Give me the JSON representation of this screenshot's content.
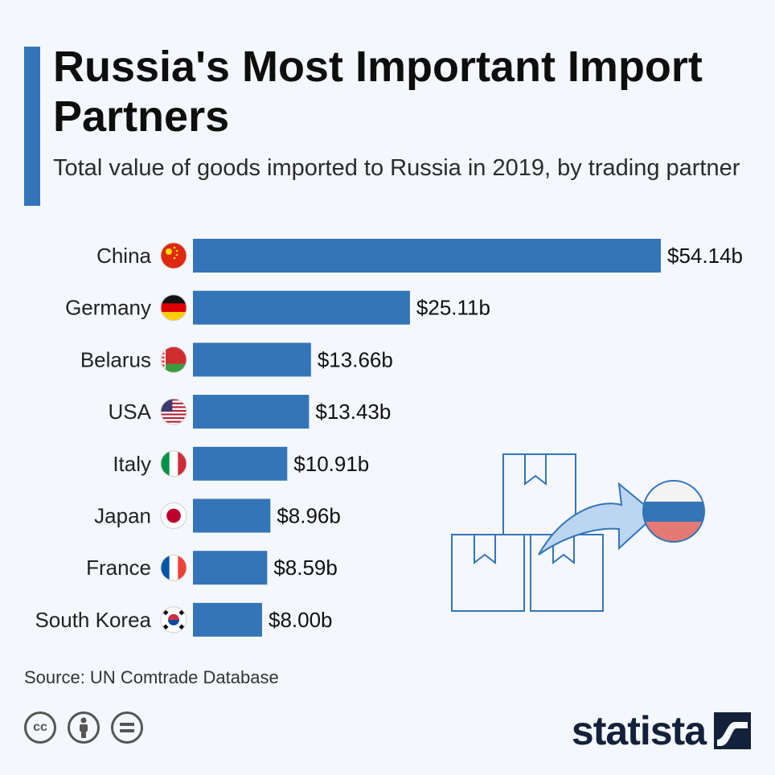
{
  "header": {
    "title": "Russia's Most Important Import Partners",
    "subtitle": "Total value of goods imported to Russia in 2019, by trading partner"
  },
  "footer": {
    "source": "Source: UN Comtrade Database",
    "logo": "statista"
  },
  "colors": {
    "accent": "#3475b8",
    "bar": "#3475b8"
  },
  "icons": [
    "cc-icon",
    "attribution-icon",
    "no-derivatives-icon",
    "statista-logo-icon",
    "russia-flag-icon"
  ],
  "chart_data": {
    "type": "bar",
    "orientation": "horizontal",
    "title": "Russia's Most Important Import Partners",
    "subtitle": "Total value of goods imported to Russia in 2019, by trading partner",
    "categories": [
      "China",
      "Germany",
      "Belarus",
      "USA",
      "Italy",
      "Japan",
      "France",
      "South Korea"
    ],
    "values": [
      54.14,
      25.11,
      13.66,
      13.43,
      10.91,
      8.96,
      8.59,
      8.0
    ],
    "value_labels": [
      "$54.14b",
      "$25.11b",
      "$13.66b",
      "$13.43b",
      "$10.91b",
      "$8.96b",
      "$8.59b",
      "$8.00b"
    ],
    "flags": [
      "china",
      "germany",
      "belarus",
      "usa",
      "italy",
      "japan",
      "france",
      "south-korea"
    ],
    "xlim": [
      0,
      54.14
    ],
    "grid": false,
    "legend": "none"
  }
}
